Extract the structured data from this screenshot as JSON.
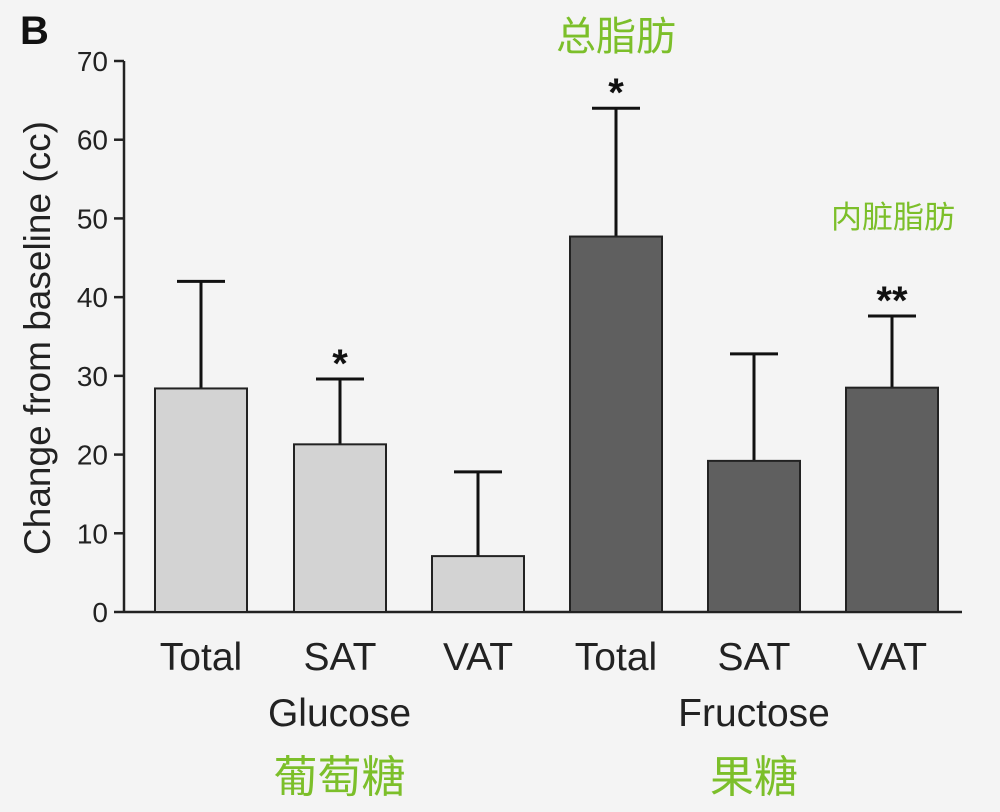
{
  "panel_label": "B",
  "chart_data": {
    "type": "bar",
    "ylabel": "Change from baseline (cc)",
    "ylim": [
      0,
      70
    ],
    "yticks": [
      0,
      10,
      20,
      30,
      40,
      50,
      60,
      70
    ],
    "categories": [
      "Total",
      "SAT",
      "VAT",
      "Total",
      "SAT",
      "VAT"
    ],
    "groups": [
      {
        "name": "Glucose",
        "annotation": "葡萄糖",
        "members": [
          0,
          1,
          2
        ]
      },
      {
        "name": "Fructose",
        "annotation": "果糖",
        "members": [
          3,
          4,
          5
        ]
      }
    ],
    "values": [
      28.4,
      21.3,
      7.1,
      47.7,
      19.2,
      28.5
    ],
    "error_upper": [
      42.0,
      29.6,
      17.8,
      64.0,
      32.8,
      37.6
    ],
    "significance": [
      "",
      "*",
      "",
      "*",
      "",
      "**"
    ],
    "bar_colors": [
      "#d3d3d3",
      "#d3d3d3",
      "#d3d3d3",
      "#5f5f5f",
      "#5f5f5f",
      "#5f5f5f"
    ],
    "annotations": [
      {
        "text": "总脂肪",
        "bar": 3
      },
      {
        "text": "内脏脂肪",
        "bar": 5
      }
    ],
    "annotation_color": "#7cbf2a",
    "grid": false
  }
}
